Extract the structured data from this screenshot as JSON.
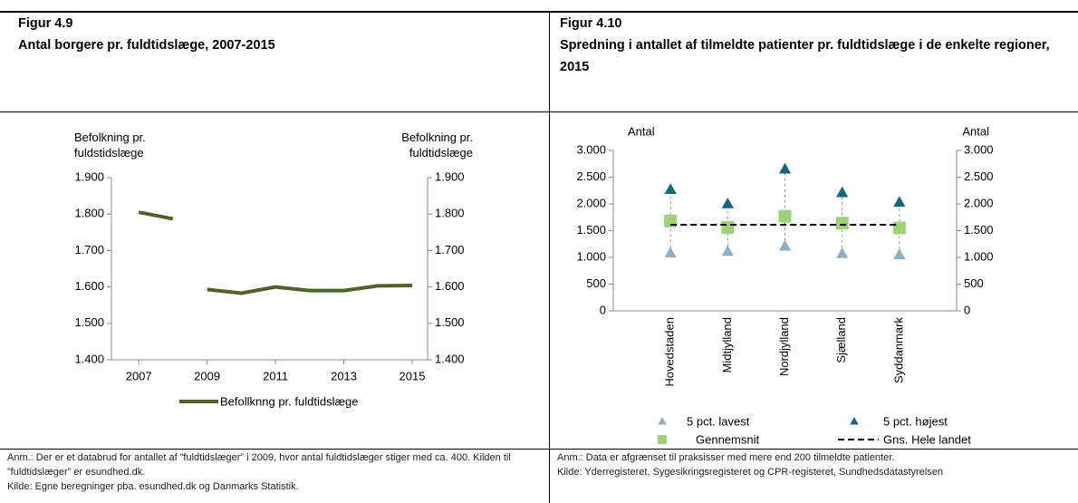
{
  "chart_data": [
    {
      "type": "line",
      "figure_label": "Figur 4.9",
      "title": "Antal borgere pr. fuldtidslæge, 2007-2015",
      "y_label": "Befolkning pr.\nfuldstidslæge",
      "y2_label": "Befolkning pr.\nfuldtidslæge",
      "x": [
        2007,
        2008,
        2009,
        2010,
        2011,
        2012,
        2013,
        2014,
        2015
      ],
      "xlim": [
        2006.2,
        2015.45
      ],
      "xticks": [
        2007,
        2009,
        2011,
        2013,
        2015
      ],
      "ylim": [
        1400,
        1900
      ],
      "yticks": [
        {
          "value": 1400,
          "label": "1.400"
        },
        {
          "value": 1500,
          "label": "1.500"
        },
        {
          "value": 1600,
          "label": "1.600"
        },
        {
          "value": 1700,
          "label": "1.700"
        },
        {
          "value": 1800,
          "label": "1.800"
        },
        {
          "value": 1900,
          "label": "1.900"
        }
      ],
      "y2lim": [
        1400,
        1900
      ],
      "y2ticks": [
        {
          "value": 1400,
          "label": "1.400"
        },
        {
          "value": 1500,
          "label": "1.500"
        },
        {
          "value": 1600,
          "label": "1.600"
        },
        {
          "value": 1700,
          "label": "1.700"
        },
        {
          "value": 1800,
          "label": "1.800"
        },
        {
          "value": 1900,
          "label": "1.900"
        }
      ],
      "break_before_x": 2009,
      "series": [
        {
          "name": "Befollknng pr. fuldtidslæge",
          "color": "#4f6228",
          "values": [
            1805,
            1787,
            1593,
            1583,
            1600,
            1590,
            1590,
            1603,
            1604
          ]
        }
      ],
      "legend": "bottom",
      "notes": [
        "Anm.: Der er et databrud for antallet af ”fuldtidslæger” i 2009, hvor antal fuldtidslæger stiger med ca. 400. Kilden til ”fuldtidslæger” er esundhed.dk.",
        "Kilde: Egne beregninger pba. esundhed.dk og Danmarks Statistik."
      ]
    },
    {
      "type": "scatter",
      "figure_label": "Figur 4.10",
      "title": "Spredning i antallet af tilmeldte patienter pr. fuldtidslæge i de enkelte regioner, 2015",
      "y_label": "Antal",
      "y2_label": "Antal",
      "categories": [
        "Hovedstaden",
        "Midtjylland",
        "Nordjylland",
        "Sjælland",
        "Syddanmark"
      ],
      "ylim": [
        0,
        3000
      ],
      "yticks": [
        0,
        500,
        {
          "value": 1000,
          "label": "1.000"
        },
        {
          "value": 1500,
          "label": "1.500"
        },
        {
          "value": 2000,
          "label": "2.000"
        },
        {
          "value": 2500,
          "label": "2.500"
        },
        {
          "value": 3000,
          "label": "3.000"
        }
      ],
      "y2lim": [
        0,
        3000
      ],
      "y2ticks": [
        0,
        500,
        {
          "value": 1000,
          "label": "1.000"
        },
        {
          "value": 1500,
          "label": "1.500"
        },
        {
          "value": 2000,
          "label": "2.000"
        },
        {
          "value": 2500,
          "label": "2.500"
        },
        {
          "value": 3000,
          "label": "3.000"
        }
      ],
      "series": [
        {
          "name": "5 pct. lavest",
          "color": "#8fb0c2",
          "marker": "triangle",
          "values": [
            1080,
            1110,
            1210,
            1070,
            1050
          ]
        },
        {
          "name": "5 pct. højest",
          "color": "#17687f",
          "marker": "triangle",
          "values": [
            2270,
            2000,
            2650,
            2210,
            2030
          ]
        },
        {
          "name": "Gennemsnit",
          "color": "#9ed27a",
          "marker": "square",
          "values": [
            1680,
            1560,
            1770,
            1640,
            1550
          ]
        },
        {
          "name": "Gns. Hele landet",
          "color": "#000000",
          "marker": "dashed-line",
          "values": [
            1610,
            1610,
            1610,
            1610,
            1610
          ]
        }
      ],
      "legend": "bottom",
      "notes": [
        "Anm.: Data er afgrænset til praksisser med mere end 200 tilmeldte patienter.",
        "Kilde: Yderregisteret, Sygesikringsregisteret og CPR-registeret, Sundhedsdatastyrelsen"
      ]
    }
  ]
}
